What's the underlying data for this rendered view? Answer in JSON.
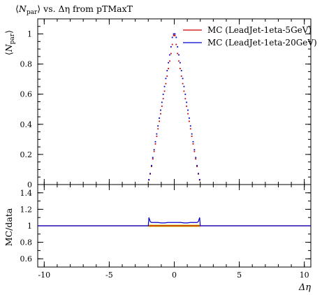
{
  "chart_data": [
    {
      "type": "scatter",
      "title": "⟨N_par⟩ vs. Δη from pTMaxT",
      "title_parts": {
        "open": "⟨",
        "symbol": "N",
        "sub": "par",
        "close": "⟩",
        "rest": " vs. Δη from pTMaxT"
      },
      "ylabel_parts": {
        "open": "⟨",
        "symbol": "N",
        "sub": "par",
        "close": "⟩"
      },
      "xlabel": "Δη",
      "xlim": [
        -10.5,
        10.5
      ],
      "ylim": [
        0,
        1.1
      ],
      "xticks": [
        -10,
        -5,
        0,
        5,
        10
      ],
      "yticks": [
        0,
        0.2,
        0.4,
        0.6,
        0.8,
        1
      ],
      "legend_position": "top-right",
      "series": [
        {
          "name": "MC (LeadJet-1eta-5GeV)",
          "color": "#cc0000",
          "x": [
            -1.95,
            -1.85,
            -1.75,
            -1.65,
            -1.55,
            -1.45,
            -1.35,
            -1.25,
            -1.15,
            -1.05,
            -0.95,
            -0.85,
            -0.75,
            -0.65,
            -0.55,
            -0.45,
            -0.35,
            -0.25,
            -0.15,
            -0.05,
            0.05,
            0.15,
            0.25,
            0.35,
            0.45,
            0.55,
            0.65,
            0.75,
            0.85,
            0.95,
            1.05,
            1.15,
            1.25,
            1.35,
            1.45,
            1.55,
            1.65,
            1.75,
            1.85,
            1.95
          ],
          "y": [
            0.03,
            0.07,
            0.12,
            0.17,
            0.22,
            0.27,
            0.32,
            0.37,
            0.42,
            0.47,
            0.52,
            0.57,
            0.62,
            0.67,
            0.72,
            0.77,
            0.82,
            0.87,
            0.93,
            0.99,
            0.99,
            0.93,
            0.87,
            0.82,
            0.77,
            0.72,
            0.67,
            0.62,
            0.57,
            0.52,
            0.47,
            0.42,
            0.37,
            0.32,
            0.27,
            0.22,
            0.17,
            0.12,
            0.07,
            0.03
          ]
        },
        {
          "name": "MC (LeadJet-1eta-20GeV)",
          "color": "#0000cc",
          "x": [
            -1.95,
            -1.85,
            -1.75,
            -1.65,
            -1.55,
            -1.45,
            -1.35,
            -1.25,
            -1.15,
            -1.05,
            -0.95,
            -0.85,
            -0.75,
            -0.65,
            -0.55,
            -0.45,
            -0.35,
            -0.25,
            -0.15,
            -0.05,
            0.05,
            0.15,
            0.25,
            0.35,
            0.45,
            0.55,
            0.65,
            0.75,
            0.85,
            0.95,
            1.05,
            1.15,
            1.25,
            1.35,
            1.45,
            1.55,
            1.65,
            1.75,
            1.85,
            1.95
          ],
          "y": [
            0.033,
            0.073,
            0.126,
            0.179,
            0.231,
            0.284,
            0.336,
            0.389,
            0.441,
            0.494,
            0.546,
            0.599,
            0.651,
            0.704,
            0.756,
            0.809,
            0.861,
            0.914,
            0.977,
            1.0,
            1.0,
            0.977,
            0.914,
            0.861,
            0.809,
            0.756,
            0.704,
            0.651,
            0.599,
            0.546,
            0.494,
            0.441,
            0.389,
            0.336,
            0.284,
            0.231,
            0.179,
            0.126,
            0.073,
            0.033
          ]
        }
      ]
    },
    {
      "type": "line",
      "title": "",
      "ylabel": "MC/data",
      "xlabel": "Δη",
      "xlim": [
        -10.5,
        10.5
      ],
      "ylim": [
        0.5,
        1.5
      ],
      "xticks": [
        -10,
        -5,
        0,
        5,
        10
      ],
      "xticklabels": [
        "-10",
        "-5",
        "0",
        "5",
        "10"
      ],
      "yticks": [
        0.6,
        0.8,
        1,
        1.2,
        1.4
      ],
      "reference_band": {
        "x": [
          -2,
          2
        ],
        "y": 1.0,
        "color": "#cccc00"
      },
      "series": [
        {
          "name": "MC (LeadJet-1eta-5GeV)",
          "color": "#cc0000",
          "x": [
            -10.5,
            10.5
          ],
          "y": [
            1.0,
            1.0
          ]
        },
        {
          "name": "MC (LeadJet-1eta-20GeV)",
          "color": "#0000cc",
          "x": [
            -10.5,
            -2,
            -1.95,
            -1.85,
            -1.75,
            -1.5,
            -1.25,
            -1.0,
            -0.75,
            -0.5,
            -0.25,
            0,
            0.25,
            0.5,
            0.75,
            1.0,
            1.25,
            1.5,
            1.75,
            1.85,
            1.95,
            2,
            10.5
          ],
          "y": [
            1.0,
            1.0,
            1.1,
            1.05,
            1.04,
            1.04,
            1.04,
            1.035,
            1.035,
            1.04,
            1.04,
            1.04,
            1.04,
            1.04,
            1.035,
            1.035,
            1.04,
            1.04,
            1.04,
            1.05,
            1.1,
            1.0,
            1.0
          ]
        }
      ]
    }
  ]
}
